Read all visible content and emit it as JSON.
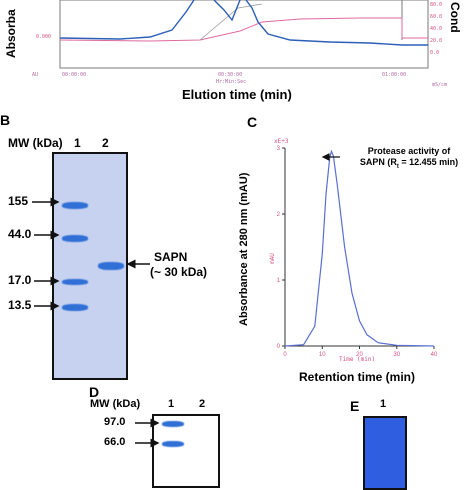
{
  "panel_a": {
    "y_label_left": "Absorba",
    "y_label_right": "Cond",
    "x_label": "Elution time (min)",
    "right_ticks": [
      "100.0",
      "80.0",
      "60.0",
      "40.0",
      "20.0",
      "0.0"
    ],
    "left_tick": "0.000",
    "time_ticks": [
      "00:00:00",
      "00:30:00",
      "01:00:00"
    ],
    "time_unit": "Hr:Min:Sec",
    "left_unit": "AU",
    "right_unit": "mS/cm",
    "colors": {
      "absorbance": "#2b5fb8",
      "conductivity": "#e06aa0",
      "frame": "#7a7a7a"
    }
  },
  "panel_b": {
    "letter": "B",
    "mw_header": "MW (kDa)",
    "lane_labels": [
      "1",
      "2"
    ],
    "markers": [
      "155",
      "44.0",
      "17.0",
      "13.5"
    ],
    "band_label": "SAPN",
    "band_sublabel": "(~ 30 kDa)"
  },
  "panel_c": {
    "letter": "C",
    "multiplier": "xE+3",
    "y_ticks": [
      "3",
      "2",
      "1",
      "0"
    ],
    "x_ticks": [
      "0",
      "10",
      "20",
      "30",
      "40"
    ],
    "inner_y_label": "mAU",
    "inner_x_label": "Time (min)",
    "y_label": "Absorbance at 280 nm (mAU)",
    "x_label": "Retention time (min)",
    "annotation_line1": "Protease activity of",
    "annotation_line2": "SAPN (R",
    "annotation_sub": "t",
    "annotation_line2_end": " = 12.455 min)",
    "peak_time_min": 12.455,
    "peak_height_xE3": 2.95,
    "curve_color": "#5a6fd0"
  },
  "panel_d": {
    "letter": "D",
    "mw_header": "MW (kDa)",
    "lane_labels": [
      "1",
      "2"
    ],
    "markers": [
      "97.0",
      "66.0"
    ]
  },
  "panel_e": {
    "letter": "E",
    "lane_label": "1"
  },
  "chart_data": {
    "type": "line",
    "x_label": "Time (min)",
    "y_label": "mAU",
    "xlim": [
      0,
      40
    ],
    "ylim": [
      0,
      3000
    ],
    "x": [
      0,
      5,
      8,
      10,
      11,
      12,
      12.455,
      13,
      14,
      16,
      18,
      20,
      22,
      25,
      30,
      40
    ],
    "y": [
      0,
      20,
      300,
      1400,
      2300,
      2850,
      2950,
      2880,
      2450,
      1500,
      800,
      380,
      170,
      50,
      10,
      0
    ]
  }
}
